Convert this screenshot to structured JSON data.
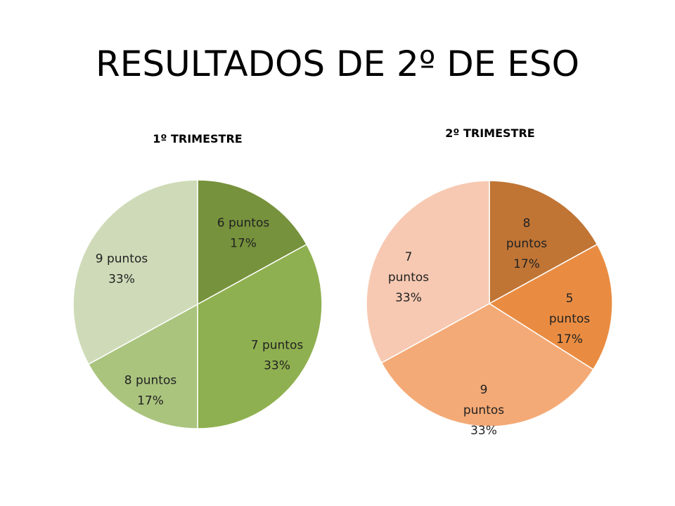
{
  "title": "RESULTADOS DE 2º DE ESO",
  "chart_data": [
    {
      "type": "pie",
      "title": "1º TRIMESTRE",
      "categories": [
        "6 puntos",
        "7 puntos",
        "8 puntos",
        "9 puntos"
      ],
      "values": [
        17,
        33,
        17,
        33
      ],
      "labels": [
        "17%",
        "33%",
        "17%",
        "33%"
      ],
      "colors": [
        "#76923c",
        "#8fb050",
        "#aac47e",
        "#cfdbb8"
      ]
    },
    {
      "type": "pie",
      "title": "2º TRIMESTRE",
      "categories": [
        "8 puntos",
        "5 puntos",
        "9 puntos",
        "7 puntos"
      ],
      "values": [
        17,
        17,
        33,
        33
      ],
      "labels": [
        "17%",
        "17%",
        "33%",
        "33%"
      ],
      "colors": [
        "#c07535",
        "#e98c42",
        "#f4aa76",
        "#f7c9b2"
      ]
    }
  ]
}
